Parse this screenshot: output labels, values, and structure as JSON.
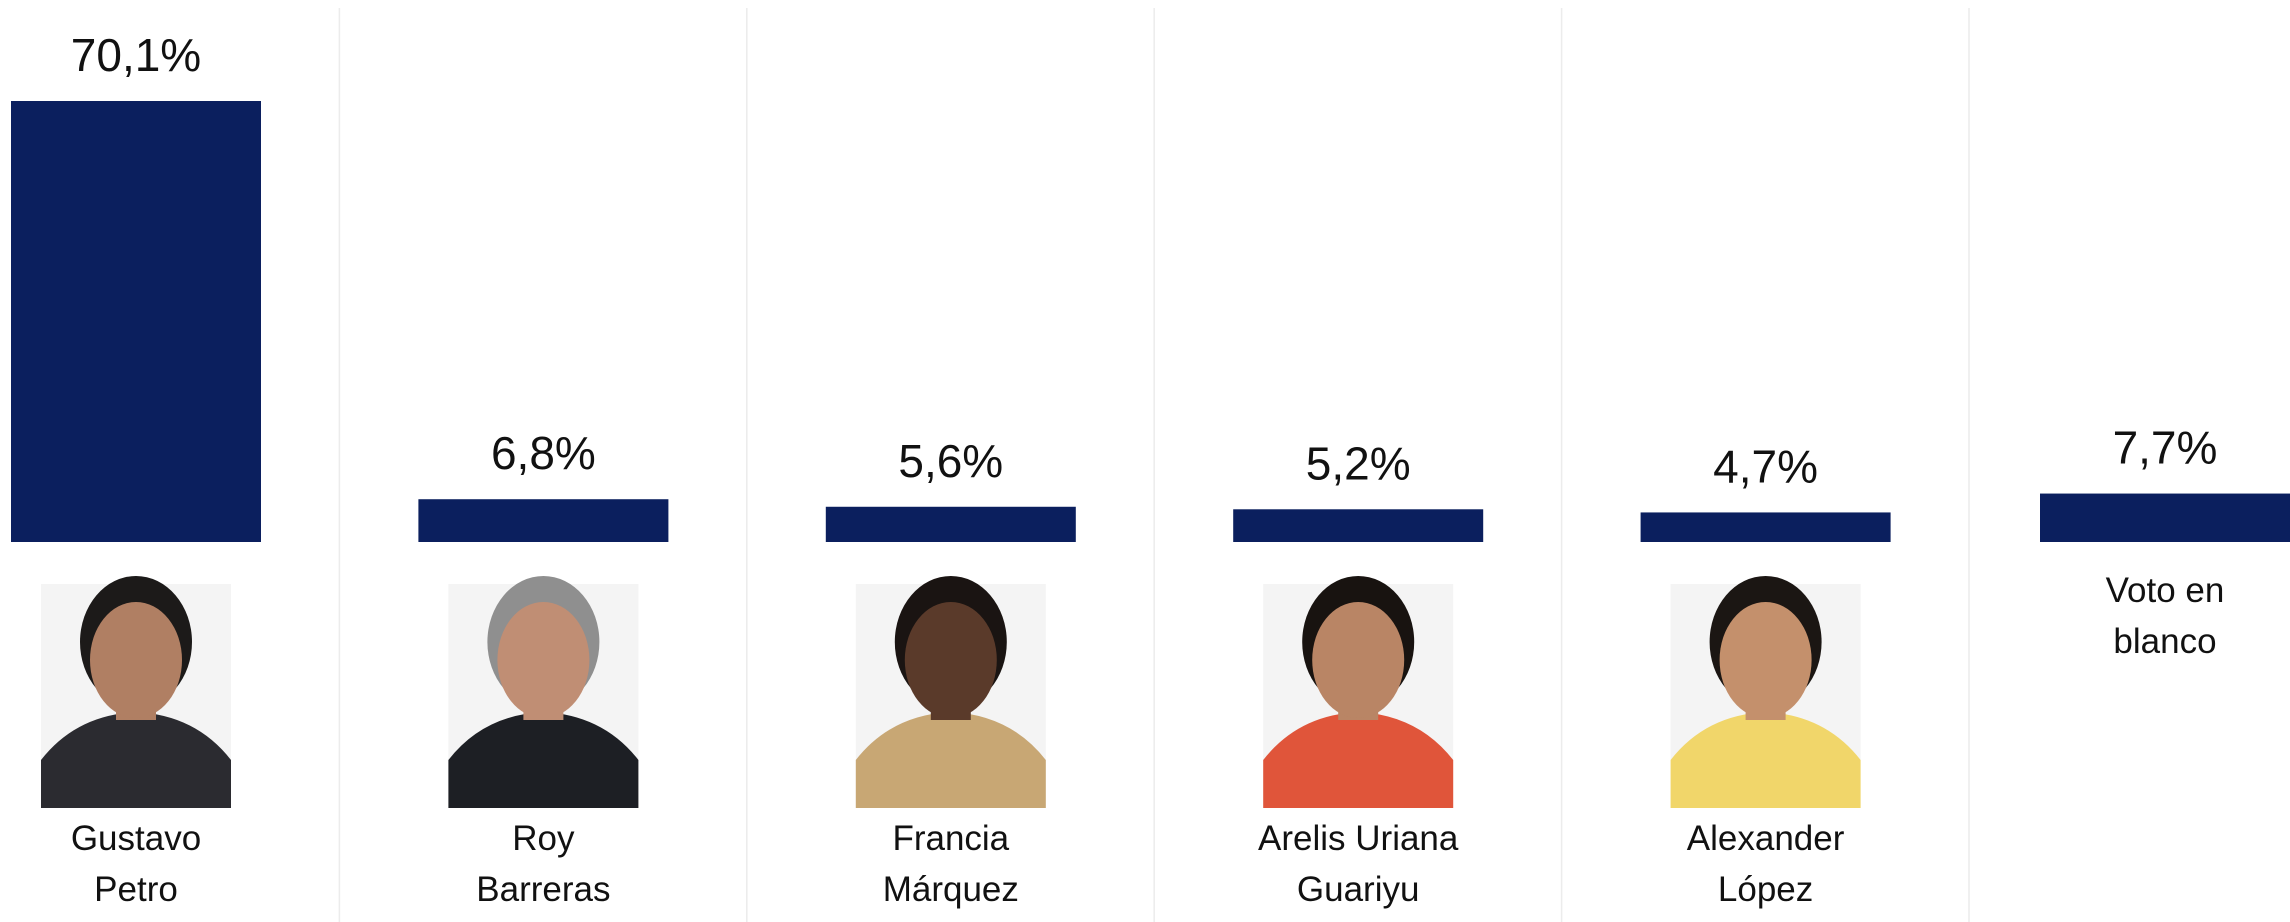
{
  "chart_data": {
    "type": "bar",
    "categories": [
      [
        "Gustavo",
        "Petro"
      ],
      [
        "Roy",
        "Barreras"
      ],
      [
        "Francia",
        "Márquez"
      ],
      [
        "Arelis Uriana",
        "Guariyu"
      ],
      [
        "Alexander",
        "López"
      ],
      [
        "Voto en",
        "blanco"
      ]
    ],
    "values": [
      70.1,
      6.8,
      5.6,
      5.2,
      4.7,
      7.7
    ],
    "value_labels": [
      "70,1%",
      "6,8%",
      "5,6%",
      "5,2%",
      "4,7%",
      "7,7%"
    ],
    "color": "#0b1f5e"
  }
}
